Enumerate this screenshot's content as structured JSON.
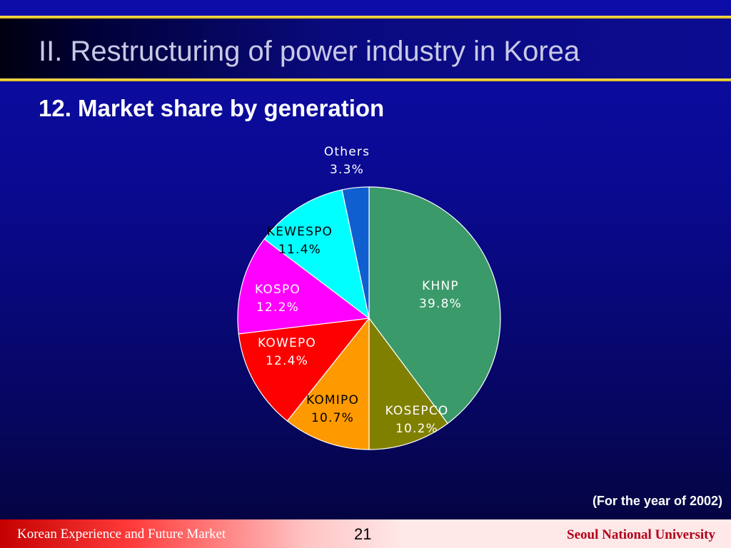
{
  "header": {
    "title": "II. Restructuring of power industry in Korea"
  },
  "subtitle": "12. Market share by generation",
  "chart_data": {
    "type": "pie",
    "title": "",
    "slices": [
      {
        "label": "KHNP",
        "value": 39.8,
        "display": "39.8%",
        "color": "#3a9a6a",
        "text_color": "#ffffff"
      },
      {
        "label": "KOSEPCO",
        "value": 10.2,
        "display": "10.2%",
        "color": "#808000",
        "text_color": "#ffffff"
      },
      {
        "label": "KOMIPO",
        "value": 10.7,
        "display": "10.7%",
        "color": "#ff9900",
        "text_color": "#000000"
      },
      {
        "label": "KOWEPO",
        "value": 12.4,
        "display": "12.4%",
        "color": "#ff0000",
        "text_color": "#ffffff"
      },
      {
        "label": "KOSPO",
        "value": 12.2,
        "display": "12.2%",
        "color": "#ff00ff",
        "text_color": "#ffffff"
      },
      {
        "label": "KEWESPO",
        "value": 11.4,
        "display": "11.4%",
        "color": "#00ffff",
        "text_color": "#000000"
      },
      {
        "label": "Others",
        "value": 3.3,
        "display": "3.3%",
        "color": "#0f5fd0",
        "text_color": "#ffffff"
      }
    ],
    "start_angle": "12 o'clock",
    "direction": "clockwise",
    "legend": "none"
  },
  "note": "(For the year of 2002)",
  "footer": {
    "left": "Korean Experience and Future Market",
    "page": "21",
    "right": "Seoul National University"
  }
}
